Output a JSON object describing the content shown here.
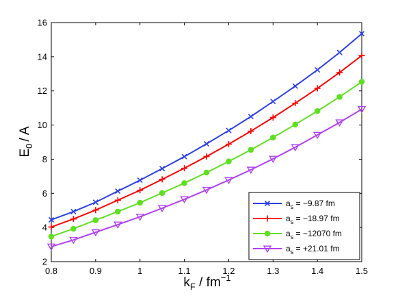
{
  "chart_data": {
    "type": "line",
    "x": [
      0.8,
      0.85,
      0.9,
      0.95,
      1.0,
      1.05,
      1.1,
      1.15,
      1.2,
      1.25,
      1.3,
      1.35,
      1.4,
      1.45,
      1.5
    ],
    "xlim": [
      0.8,
      1.5
    ],
    "ylim": [
      2,
      16
    ],
    "xticks": [
      "0.8",
      "0.9",
      "1",
      "1.1",
      "1.2",
      "1.3",
      "1.4",
      "1.5"
    ],
    "yticks": [
      "2",
      "4",
      "6",
      "8",
      "10",
      "12",
      "14",
      "16"
    ],
    "xlabel": {
      "main": "k",
      "sub": "F",
      "rest": " / fm",
      "sup": "−1"
    },
    "ylabel": {
      "main": "E",
      "sub": "0",
      "rest": "/ A"
    },
    "grid": false,
    "legend_position": "bottom-right",
    "series": [
      {
        "label_main": "a",
        "label_sub": "s",
        "label_rest": " = −9.87 fm",
        "color": "#2b3fe6",
        "marker": "x",
        "values": [
          4.45,
          4.93,
          5.48,
          6.13,
          6.77,
          7.45,
          8.15,
          8.9,
          9.68,
          10.5,
          11.38,
          12.28,
          13.23,
          14.25,
          15.35
        ]
      },
      {
        "label_main": "a",
        "label_sub": "s",
        "label_rest": " = −18.97 fm",
        "color": "#ff0000",
        "marker": "+",
        "values": [
          4.03,
          4.5,
          5.02,
          5.6,
          6.18,
          6.82,
          7.47,
          8.16,
          8.88,
          9.64,
          10.44,
          11.28,
          12.15,
          13.08,
          14.07
        ]
      },
      {
        "label_main": "a",
        "label_sub": "s",
        "label_rest": " = −12070 fm",
        "color": "#5ee020",
        "marker": "dot",
        "values": [
          3.47,
          3.93,
          4.43,
          4.93,
          5.45,
          6.02,
          6.6,
          7.22,
          7.87,
          8.55,
          9.27,
          10.03,
          10.82,
          11.65,
          12.53
        ]
      },
      {
        "label_main": "a",
        "label_sub": "s",
        "label_rest": " = +21.01 fm",
        "color": "#b040f0",
        "marker": "triangle-down",
        "values": [
          2.88,
          3.27,
          3.72,
          4.17,
          4.63,
          5.13,
          5.65,
          6.2,
          6.78,
          7.38,
          8.02,
          8.7,
          9.42,
          10.15,
          10.93
        ]
      }
    ]
  }
}
